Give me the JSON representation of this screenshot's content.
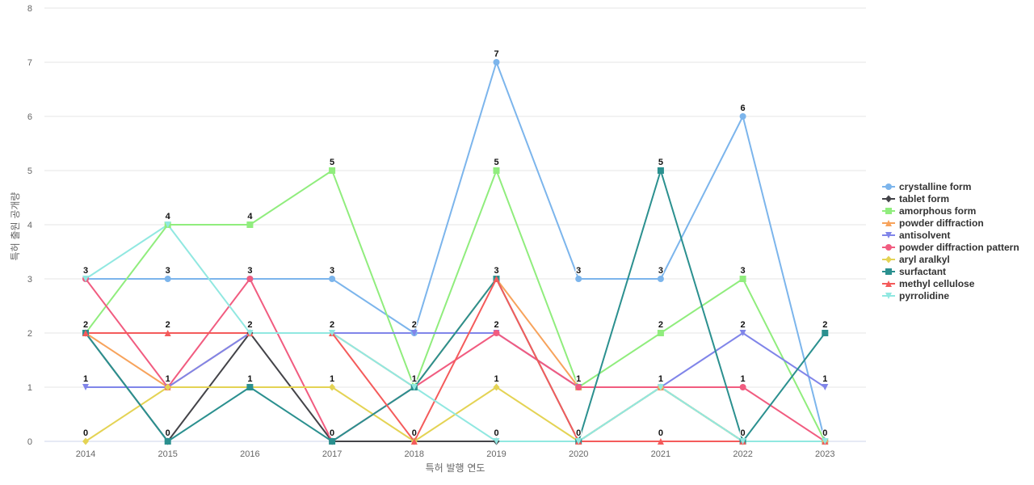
{
  "chart_data": {
    "type": "line",
    "title": "",
    "xlabel": "특허 발행 연도",
    "ylabel": "특허 출원 공개량",
    "x": [
      "2014",
      "2015",
      "2016",
      "2017",
      "2018",
      "2019",
      "2020",
      "2021",
      "2022",
      "2023"
    ],
    "ylim": [
      0,
      8
    ],
    "yticks": [
      0,
      1,
      2,
      3,
      4,
      5,
      6,
      7,
      8
    ],
    "grid": "horizontal",
    "legend_position": "right",
    "series": [
      {
        "name": "crystalline form",
        "color": "#7cb5ec",
        "marker": "circle",
        "values": [
          3,
          3,
          3,
          3,
          2,
          7,
          3,
          3,
          6,
          0
        ]
      },
      {
        "name": "tablet form",
        "color": "#434348",
        "marker": "diamond",
        "values": [
          2,
          0,
          2,
          0,
          0,
          0,
          0,
          1,
          0,
          0
        ]
      },
      {
        "name": "amorphous form",
        "color": "#90ed7d",
        "marker": "square",
        "values": [
          2,
          4,
          4,
          5,
          1,
          5,
          1,
          2,
          3,
          0
        ]
      },
      {
        "name": "powder diffraction",
        "color": "#f7a35c",
        "marker": "triangle",
        "values": [
          2,
          1,
          2,
          2,
          1,
          3,
          1,
          1,
          0,
          0
        ]
      },
      {
        "name": "antisolvent",
        "color": "#8085e9",
        "marker": "triangle-down",
        "values": [
          1,
          1,
          2,
          2,
          2,
          2,
          1,
          1,
          2,
          1
        ]
      },
      {
        "name": "powder diffraction pattern",
        "color": "#f15c80",
        "marker": "circle",
        "values": [
          3,
          1,
          3,
          0,
          1,
          2,
          1,
          1,
          1,
          0
        ]
      },
      {
        "name": "aryl aralkyl",
        "color": "#e4d354",
        "marker": "diamond",
        "values": [
          0,
          1,
          1,
          1,
          0,
          1,
          0,
          1,
          0,
          0
        ]
      },
      {
        "name": "surfactant",
        "color": "#2b908f",
        "marker": "square",
        "values": [
          2,
          0,
          1,
          0,
          1,
          3,
          0,
          5,
          0,
          2
        ]
      },
      {
        "name": "methyl cellulose",
        "color": "#f45b5b",
        "marker": "triangle",
        "values": [
          2,
          2,
          2,
          2,
          0,
          3,
          0,
          0,
          0,
          0
        ]
      },
      {
        "name": "pyrrolidine",
        "color": "#91e8e1",
        "marker": "triangle-down",
        "values": [
          3,
          4,
          2,
          2,
          1,
          0,
          0,
          1,
          0,
          0
        ]
      }
    ],
    "data_labels": [
      {
        "x": "2014",
        "y": 3,
        "text": "3"
      },
      {
        "x": "2014",
        "y": 2,
        "text": "2"
      },
      {
        "x": "2014",
        "y": 1,
        "text": "1"
      },
      {
        "x": "2014",
        "y": 0,
        "text": "0"
      },
      {
        "x": "2015",
        "y": 4,
        "text": "4"
      },
      {
        "x": "2015",
        "y": 3,
        "text": "3"
      },
      {
        "x": "2015",
        "y": 2,
        "text": "2"
      },
      {
        "x": "2015",
        "y": 1,
        "text": "1"
      },
      {
        "x": "2015",
        "y": 0,
        "text": "0"
      },
      {
        "x": "2016",
        "y": 4,
        "text": "4"
      },
      {
        "x": "2016",
        "y": 3,
        "text": "3"
      },
      {
        "x": "2016",
        "y": 2,
        "text": "2"
      },
      {
        "x": "2016",
        "y": 1,
        "text": "1"
      },
      {
        "x": "2017",
        "y": 5,
        "text": "5"
      },
      {
        "x": "2017",
        "y": 3,
        "text": "3"
      },
      {
        "x": "2017",
        "y": 2,
        "text": "2"
      },
      {
        "x": "2017",
        "y": 1,
        "text": "1"
      },
      {
        "x": "2017",
        "y": 0,
        "text": "0"
      },
      {
        "x": "2018",
        "y": 2,
        "text": "2"
      },
      {
        "x": "2018",
        "y": 1,
        "text": "1"
      },
      {
        "x": "2018",
        "y": 0,
        "text": "0"
      },
      {
        "x": "2019",
        "y": 7,
        "text": "7"
      },
      {
        "x": "2019",
        "y": 5,
        "text": "5"
      },
      {
        "x": "2019",
        "y": 3,
        "text": "3"
      },
      {
        "x": "2019",
        "y": 2,
        "text": "2"
      },
      {
        "x": "2019",
        "y": 1,
        "text": "1"
      },
      {
        "x": "2019",
        "y": 0,
        "text": "0"
      },
      {
        "x": "2020",
        "y": 3,
        "text": "3"
      },
      {
        "x": "2020",
        "y": 1,
        "text": "1"
      },
      {
        "x": "2020",
        "y": 0,
        "text": "0"
      },
      {
        "x": "2021",
        "y": 5,
        "text": "5"
      },
      {
        "x": "2021",
        "y": 3,
        "text": "3"
      },
      {
        "x": "2021",
        "y": 2,
        "text": "2"
      },
      {
        "x": "2021",
        "y": 1,
        "text": "1"
      },
      {
        "x": "2021",
        "y": 0,
        "text": "0"
      },
      {
        "x": "2022",
        "y": 6,
        "text": "6"
      },
      {
        "x": "2022",
        "y": 3,
        "text": "3"
      },
      {
        "x": "2022",
        "y": 2,
        "text": "2"
      },
      {
        "x": "2022",
        "y": 1,
        "text": "1"
      },
      {
        "x": "2022",
        "y": 0,
        "text": "0"
      },
      {
        "x": "2023",
        "y": 2,
        "text": "2"
      },
      {
        "x": "2023",
        "y": 1,
        "text": "1"
      },
      {
        "x": "2023",
        "y": 0,
        "text": "0"
      }
    ]
  }
}
